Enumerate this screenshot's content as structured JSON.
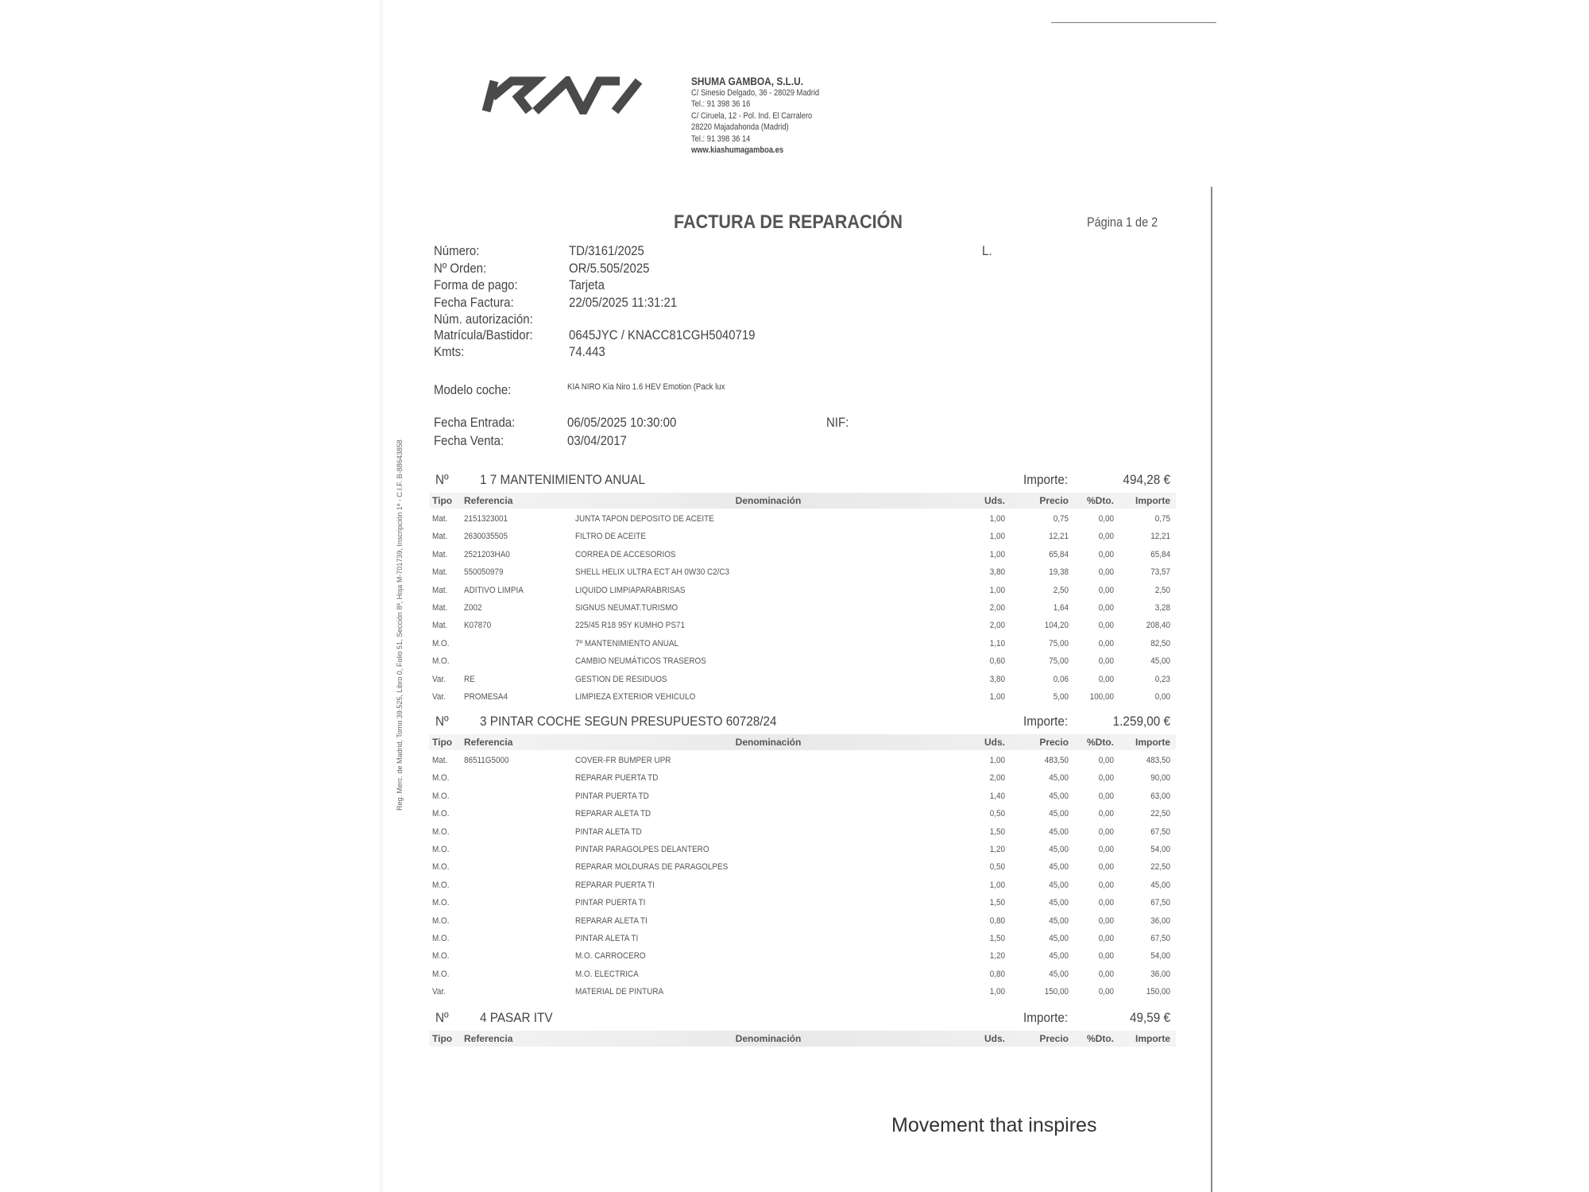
{
  "company": {
    "logo_text": "KIA",
    "name": "SHUMA GAMBOA, S.L.U.",
    "address_lines": [
      "C/ Sinesio Delgado, 36 - 28029 Madrid",
      "Tel.: 91 398 36 16",
      "C/ Ciruela, 12 - Pol. Ind. El Carralero",
      "28220 Majadahonda (Madrid)",
      "Tel.: 91 398 36 14",
      "www.kiashumagamboa.es"
    ]
  },
  "document": {
    "title": "FACTURA DE REPARACIÓN",
    "page": "Página 1 de 2",
    "customer_initial": "L."
  },
  "fields": [
    {
      "label": "Número:",
      "value": "TD/3161/2025"
    },
    {
      "label": "Nº Orden:",
      "value": "OR/5.505/2025"
    },
    {
      "label": "Forma de pago:",
      "value": "Tarjeta"
    },
    {
      "label": "Fecha Factura:",
      "value": "22/05/2025  11:31:21"
    },
    {
      "label": "Núm. autorización:",
      "value": ""
    },
    {
      "label": "Matrícula/Bastidor:",
      "value": "0645JYC / KNACC81CGH5040719"
    },
    {
      "label": "Kmts:",
      "value": " 74.443"
    }
  ],
  "modelo": {
    "label": "Modelo coche:",
    "value": "KIA NIRO Kia Niro 1.6 HEV Emotion (Pack lux"
  },
  "fecha_entrada": {
    "label": "Fecha Entrada:",
    "value": "06/05/2025  10:30:00"
  },
  "fecha_venta": {
    "label": "Fecha Venta:",
    "value": "03/04/2017"
  },
  "nif": {
    "label": "NIF:"
  },
  "columns": [
    "Tipo",
    "Referencia",
    "Denominación",
    "Uds.",
    "Precio",
    "%Dto.",
    "Importe"
  ],
  "sections": [
    {
      "no_label": "Nº",
      "title": "1 7 MANTENIMIENTO ANUAL",
      "importe_label": "Importe:",
      "importe": "494,28 €",
      "rows": [
        [
          "Mat.",
          "2151323001",
          "JUNTA TAPON DEPOSITO DE ACEITE",
          "1,00",
          "0,75",
          "0,00",
          "0,75"
        ],
        [
          "Mat.",
          "2630035505",
          "FILTRO DE ACEITE",
          "1,00",
          "12,21",
          "0,00",
          "12,21"
        ],
        [
          "Mat.",
          "2521203HA0",
          "CORREA DE ACCESORIOS",
          "1,00",
          "65,84",
          "0,00",
          "65,84"
        ],
        [
          "Mat.",
          "550050979",
          "SHELL HELIX ULTRA ECT AH 0W30 C2/C3",
          "3,80",
          "19,38",
          "0,00",
          "73,57"
        ],
        [
          "Mat.",
          "ADITIVO LIMPIA",
          "LIQUIDO LIMPIAPARABRISAS",
          "1,00",
          "2,50",
          "0,00",
          "2,50"
        ],
        [
          "Mat.",
          "Z002",
          "SIGNUS NEUMAT.TURISMO",
          "2,00",
          "1,64",
          "0,00",
          "3,28"
        ],
        [
          "Mat.",
          "K07870",
          "225/45 R18 95Y KUMHO PS71",
          "2,00",
          "104,20",
          "0,00",
          "208,40"
        ],
        [
          "M.O.",
          "",
          "7º MANTENIMIENTO ANUAL",
          "1,10",
          "75,00",
          "0,00",
          "82,50"
        ],
        [
          "M.O.",
          "",
          "CAMBIO NEUMÁTICOS TRASEROS",
          "0,60",
          "75,00",
          "0,00",
          "45,00"
        ],
        [
          "Var.",
          "RE",
          "GESTION DE RESIDUOS",
          "3,80",
          "0,06",
          "0,00",
          "0,23"
        ],
        [
          "Var.",
          "PROMESA4",
          "LIMPIEZA EXTERIOR VEHICULO",
          "1,00",
          "5,00",
          "100,00",
          "0,00"
        ]
      ]
    },
    {
      "no_label": "Nº",
      "title": "3 PINTAR COCHE SEGUN PRESUPUESTO 60728/24",
      "importe_label": "Importe:",
      "importe": "1.259,00 €",
      "rows": [
        [
          "Mat.",
          "86511G5000",
          "COVER-FR BUMPER UPR",
          "1,00",
          "483,50",
          "0,00",
          "483,50"
        ],
        [
          "M.O.",
          "",
          "REPARAR PUERTA TD",
          "2,00",
          "45,00",
          "0,00",
          "90,00"
        ],
        [
          "M.O.",
          "",
          "PINTAR PUERTA TD",
          "1,40",
          "45,00",
          "0,00",
          "63,00"
        ],
        [
          "M.O.",
          "",
          "REPARAR ALETA TD",
          "0,50",
          "45,00",
          "0,00",
          "22,50"
        ],
        [
          "M.O.",
          "",
          "PINTAR ALETA TD",
          "1,50",
          "45,00",
          "0,00",
          "67,50"
        ],
        [
          "M.O.",
          "",
          "PINTAR PARAGOLPES DELANTERO",
          "1,20",
          "45,00",
          "0,00",
          "54,00"
        ],
        [
          "M.O.",
          "",
          "REPARAR MOLDURAS DE PARAGOLPES",
          "0,50",
          "45,00",
          "0,00",
          "22,50"
        ],
        [
          "M.O.",
          "",
          "REPARAR PUERTA TI",
          "1,00",
          "45,00",
          "0,00",
          "45,00"
        ],
        [
          "M.O.",
          "",
          "PINTAR PUERTA TI",
          "1,50",
          "45,00",
          "0,00",
          "67,50"
        ],
        [
          "M.O.",
          "",
          "REPARAR ALETA TI",
          "0,80",
          "45,00",
          "0,00",
          "36,00"
        ],
        [
          "M.O.",
          "",
          "PINTAR ALETA TI",
          "1,50",
          "45,00",
          "0,00",
          "67,50"
        ],
        [
          "M.O.",
          "",
          "M.O. CARROCERO",
          "1,20",
          "45,00",
          "0,00",
          "54,00"
        ],
        [
          "M.O.",
          "",
          "M.O. ELECTRICA",
          "0,80",
          "45,00",
          "0,00",
          "36,00"
        ],
        [
          "Var.",
          "",
          "MATERIAL DE PINTURA",
          "1,00",
          "150,00",
          "0,00",
          "150,00"
        ]
      ]
    },
    {
      "no_label": "Nº",
      "title": "4 PASAR ITV",
      "importe_label": "Importe:",
      "importe": "49,59 €",
      "rows": []
    }
  ],
  "registry_text": "Reg. Merc. de Madrid, Tomo 39.525, Libro 0, Folio 51, Sección 8ª, Hoja M-701739, Inscripción 1ª - C.I.F. B-88643858",
  "slogan": "Movement that inspires",
  "colors": {
    "text": "#3a3a3a",
    "logo": "#4a4a4a",
    "band": "#ececec"
  }
}
